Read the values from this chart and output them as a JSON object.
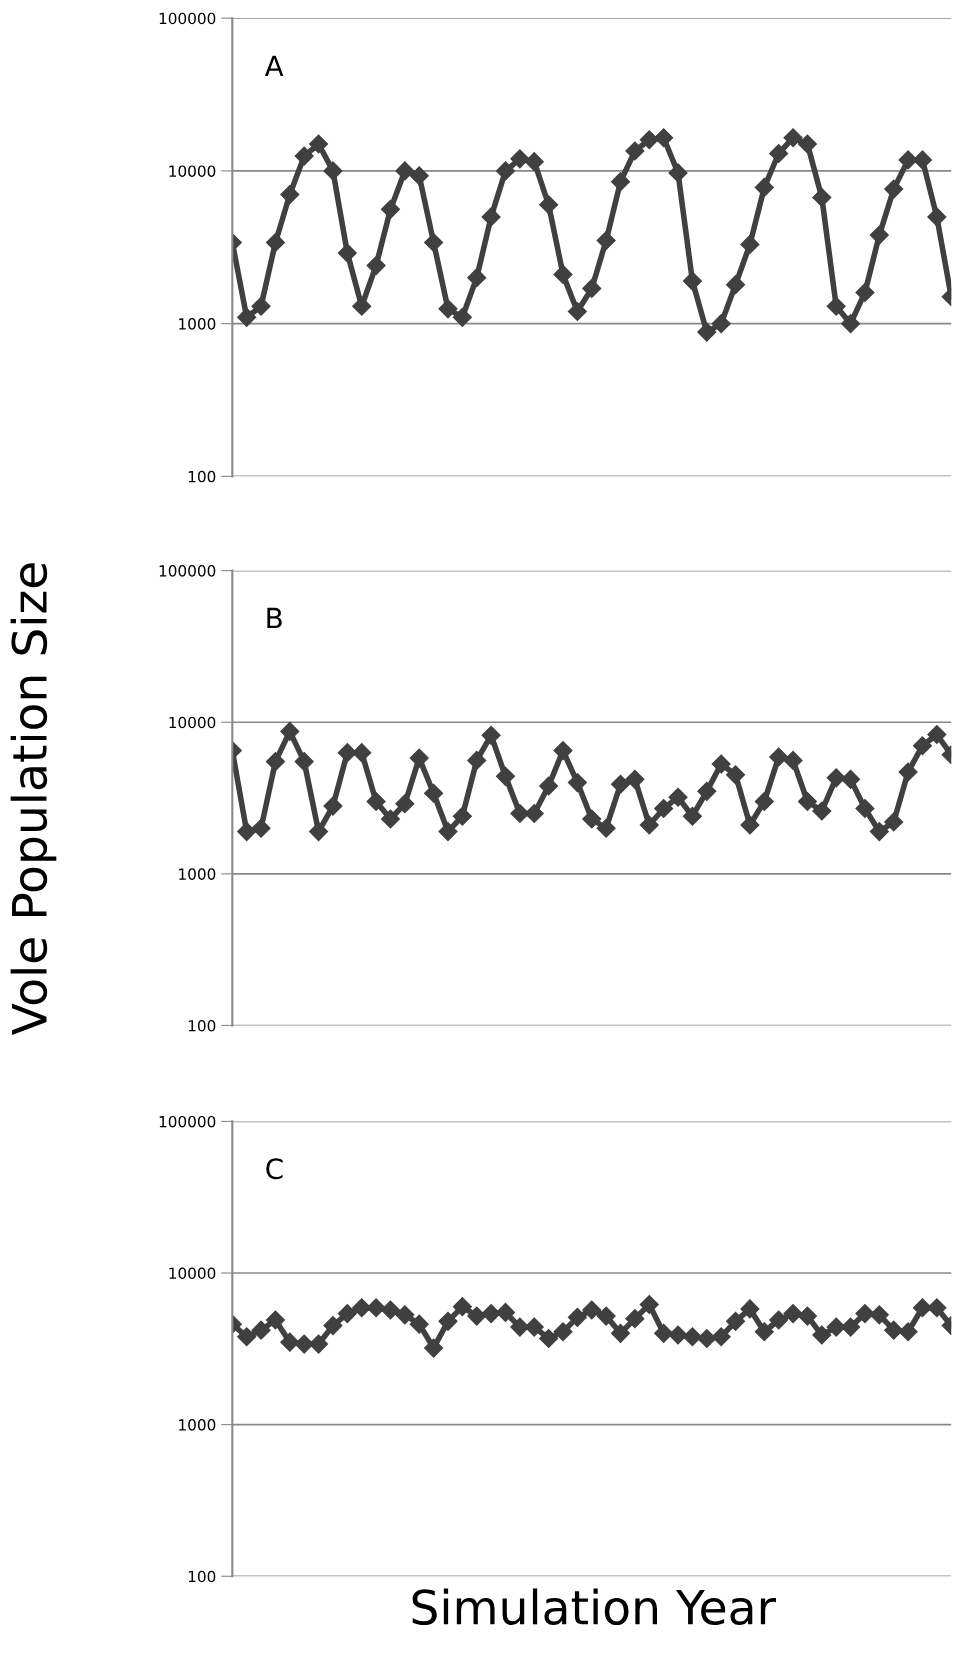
{
  "chart_data": [
    {
      "type": "line",
      "annotations": [
        "A"
      ],
      "log": true,
      "grid": "y",
      "tick_labels": "y",
      "marker": "diamond",
      "line_style": "solid",
      "ylim": [
        100,
        100000
      ],
      "yticks": [
        100,
        1000,
        10000,
        100000
      ],
      "categories": [
        null,
        null,
        null,
        null,
        null,
        null,
        null,
        null,
        null,
        null,
        null,
        null,
        null,
        null,
        null,
        null,
        null,
        null,
        null,
        null,
        null,
        null,
        null,
        null,
        null,
        null,
        null,
        null,
        null,
        null,
        null,
        null,
        null,
        null,
        null,
        null,
        null,
        null,
        null,
        null,
        null,
        null,
        null,
        null,
        null,
        null,
        null,
        null,
        null,
        null,
        null
      ],
      "series": [
        {
          "color": "#404040",
          "values": [
            3400,
            1100,
            1300,
            3400,
            7000,
            12500,
            15000,
            10000,
            2900,
            1300,
            2400,
            5600,
            10000,
            9300,
            3400,
            1250,
            1100,
            2000,
            5000,
            10000,
            12000,
            11500,
            6000,
            2100,
            1200,
            1700,
            3500,
            8500,
            13500,
            16000,
            16500,
            9700,
            1900,
            880,
            1000,
            1800,
            3300,
            7800,
            13000,
            16500,
            15000,
            6700,
            1300,
            1000,
            1600,
            3800,
            7600,
            11800,
            11800,
            5000,
            1500
          ]
        }
      ]
    },
    {
      "type": "line",
      "annotations": [
        "B"
      ],
      "ylabel": "Vole Population Size",
      "log": true,
      "grid": "y",
      "tick_labels": "y",
      "marker": "diamond",
      "line_style": "solid",
      "ylim": [
        100,
        100000
      ],
      "yticks": [
        100,
        1000,
        10000,
        100000
      ],
      "categories": [
        null,
        null,
        null,
        null,
        null,
        null,
        null,
        null,
        null,
        null,
        null,
        null,
        null,
        null,
        null,
        null,
        null,
        null,
        null,
        null,
        null,
        null,
        null,
        null,
        null,
        null,
        null,
        null,
        null,
        null,
        null,
        null,
        null,
        null,
        null,
        null,
        null,
        null,
        null,
        null,
        null,
        null,
        null,
        null,
        null,
        null,
        null,
        null,
        null,
        null,
        null
      ],
      "series": [
        {
          "color": "#404040",
          "values": [
            6500,
            1900,
            2000,
            5500,
            8700,
            5500,
            1900,
            2800,
            6300,
            6300,
            3000,
            2300,
            2900,
            5800,
            3400,
            1900,
            2400,
            5600,
            8200,
            4400,
            2500,
            2500,
            3800,
            6500,
            4000,
            2300,
            2000,
            3900,
            4200,
            2100,
            2700,
            3200,
            2400,
            3500,
            5300,
            4500,
            2100,
            3000,
            5900,
            5600,
            3000,
            2600,
            4300,
            4200,
            2700,
            1900,
            2200,
            4700,
            7000,
            8300,
            6100
          ]
        }
      ]
    },
    {
      "type": "line",
      "annotations": [
        "C"
      ],
      "xlabel": "Simulation Year",
      "log": true,
      "grid": "y",
      "tick_labels": "y",
      "marker": "diamond",
      "line_style": "solid",
      "ylim": [
        100,
        100000
      ],
      "yticks": [
        100,
        1000,
        10000,
        100000
      ],
      "categories": [
        null,
        null,
        null,
        null,
        null,
        null,
        null,
        null,
        null,
        null,
        null,
        null,
        null,
        null,
        null,
        null,
        null,
        null,
        null,
        null,
        null,
        null,
        null,
        null,
        null,
        null,
        null,
        null,
        null,
        null,
        null,
        null,
        null,
        null,
        null,
        null,
        null,
        null,
        null,
        null,
        null,
        null,
        null,
        null,
        null,
        null,
        null,
        null,
        null,
        null,
        null
      ],
      "series": [
        {
          "color": "#404040",
          "values": [
            4600,
            3800,
            4200,
            4900,
            3500,
            3400,
            3400,
            4500,
            5400,
            5900,
            5900,
            5700,
            5300,
            4600,
            3200,
            4800,
            6000,
            5200,
            5400,
            5500,
            4400,
            4400,
            3700,
            4100,
            5100,
            5700,
            5200,
            4000,
            5000,
            6200,
            4000,
            3900,
            3800,
            3700,
            3800,
            4800,
            5800,
            4100,
            4900,
            5400,
            5200,
            3900,
            4400,
            4400,
            5400,
            5300,
            4200,
            4100,
            5900,
            5900,
            4500
          ]
        }
      ]
    }
  ]
}
